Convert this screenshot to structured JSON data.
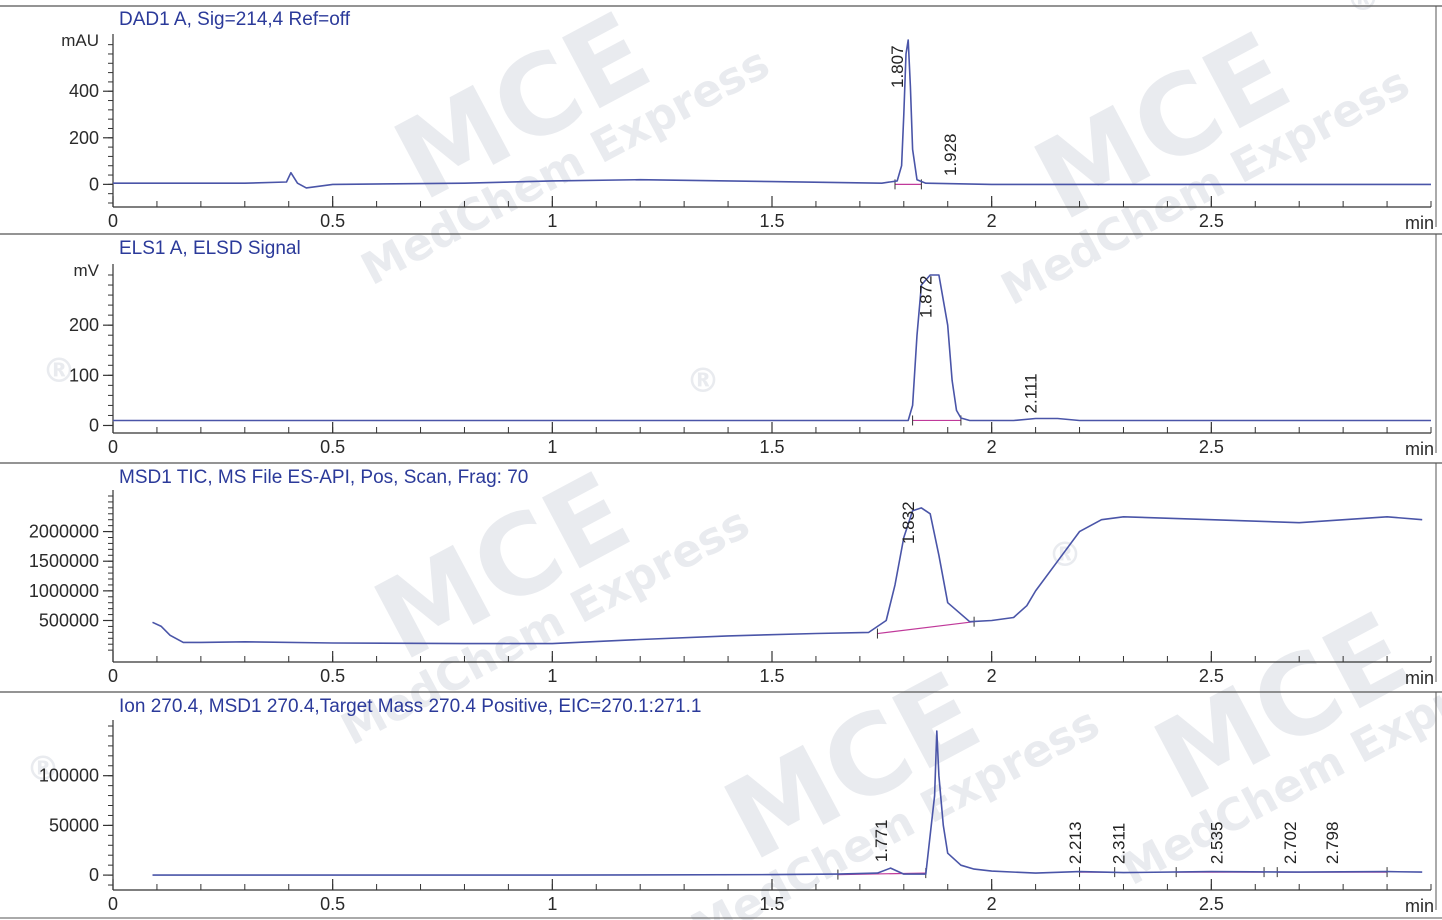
{
  "colors": {
    "trace": "#4a55a8",
    "baseline": "#c0399a",
    "axis": "#333333",
    "title": "#2b3a9a",
    "watermark": "#eceef2"
  },
  "watermark": {
    "brand": "MCE",
    "company": "MedChem Express",
    "registered": "®"
  },
  "chart_data": [
    {
      "type": "line",
      "title": "DAD1 A, Sig=214,4 Ref=off",
      "ylabel": "mAU",
      "xlabel": "min",
      "xlim": [
        0,
        3.0
      ],
      "ylim": [
        -50,
        620
      ],
      "yticks": [
        0,
        200,
        400
      ],
      "xticks": [
        0,
        0.5,
        1,
        1.5,
        2,
        2.5
      ],
      "peaks": [
        {
          "rt": "1.807",
          "x": 1.807,
          "y": 620
        },
        {
          "rt": "1.928",
          "x": 1.928,
          "y": 10
        }
      ],
      "series": [
        {
          "x": [
            0,
            0.3,
            0.395,
            0.405,
            0.42,
            0.44,
            0.5,
            0.8,
            1.0,
            1.2,
            1.5,
            1.75,
            1.785,
            1.795,
            1.8,
            1.805,
            1.81,
            1.815,
            1.82,
            1.83,
            1.85,
            2.0,
            2.5,
            3.0
          ],
          "y": [
            5,
            5,
            10,
            50,
            5,
            -15,
            0,
            5,
            15,
            20,
            12,
            5,
            15,
            80,
            300,
            560,
            620,
            420,
            150,
            20,
            5,
            0,
            0,
            0
          ]
        }
      ],
      "baselines": [
        [
          1.78,
          1.84,
          0,
          0
        ]
      ]
    },
    {
      "type": "line",
      "title": "ELS1 A, ELSD Signal",
      "ylabel": "mV",
      "xlabel": "min",
      "xlim": [
        0,
        3.0
      ],
      "ylim": [
        -15,
        310
      ],
      "yticks": [
        0,
        100,
        200
      ],
      "xticks": [
        0,
        0.5,
        1,
        1.5,
        2,
        2.5
      ],
      "peaks": [
        {
          "rt": "1.872",
          "x": 1.872,
          "y": 300
        },
        {
          "rt": "2.111",
          "x": 2.111,
          "y": 12
        }
      ],
      "series": [
        {
          "x": [
            0,
            1.5,
            1.81,
            1.82,
            1.83,
            1.84,
            1.86,
            1.88,
            1.9,
            1.91,
            1.92,
            1.93,
            1.95,
            2.05,
            2.1,
            2.15,
            2.2,
            3.0
          ],
          "y": [
            10,
            10,
            10,
            40,
            180,
            280,
            300,
            300,
            200,
            90,
            30,
            15,
            10,
            10,
            14,
            14,
            10,
            10
          ]
        }
      ],
      "baselines": [
        [
          1.82,
          1.93,
          10,
          10
        ]
      ]
    },
    {
      "type": "line",
      "title": "MSD1 TIC, MS File     ES-API, Pos, Scan, Frag: 70",
      "ylabel": "",
      "xlabel": "min",
      "xlim": [
        0,
        3.0
      ],
      "ylim": [
        -200000,
        2600000
      ],
      "yticks": [
        500000,
        1000000,
        1500000,
        2000000
      ],
      "xticks": [
        0,
        0.5,
        1,
        1.5,
        2,
        2.5
      ],
      "peaks": [
        {
          "rt": "1.832",
          "x": 1.832,
          "y": 2400000
        }
      ],
      "series": [
        {
          "x": [
            0.09,
            0.11,
            0.13,
            0.16,
            0.2,
            0.3,
            0.5,
            0.8,
            1.0,
            1.2,
            1.4,
            1.6,
            1.72,
            1.76,
            1.78,
            1.8,
            1.82,
            1.84,
            1.86,
            1.88,
            1.9,
            1.95,
            2.0,
            2.05,
            2.08,
            2.1,
            2.15,
            2.2,
            2.25,
            2.3,
            2.5,
            2.7,
            2.9,
            2.98
          ],
          "y": [
            470000,
            400000,
            250000,
            130000,
            130000,
            140000,
            120000,
            110000,
            110000,
            180000,
            240000,
            280000,
            300000,
            500000,
            1100000,
            1900000,
            2350000,
            2400000,
            2300000,
            1600000,
            800000,
            480000,
            500000,
            550000,
            750000,
            1000000,
            1500000,
            2000000,
            2200000,
            2250000,
            2200000,
            2150000,
            2250000,
            2200000
          ]
        }
      ],
      "baselines": [
        [
          1.74,
          1.96,
          280000,
          480000
        ]
      ]
    },
    {
      "type": "line",
      "title": "Ion 270.4, MSD1 270.4,Target Mass 270.4 Positive, EIC=270.1:271.1",
      "ylabel": "",
      "xlabel": "min",
      "xlim": [
        0,
        3.0
      ],
      "ylim": [
        -15000,
        150000
      ],
      "yticks": [
        0,
        50000,
        100000
      ],
      "xticks": [
        0,
        0.5,
        1,
        1.5,
        2,
        2.5
      ],
      "peaks": [
        {
          "rt": "1.771",
          "x": 1.771,
          "y": 7000
        },
        {
          "rt": "2.213",
          "x": 2.213,
          "y": 5000
        },
        {
          "rt": "2.311",
          "x": 2.311,
          "y": 5000
        },
        {
          "rt": "2.535",
          "x": 2.535,
          "y": 5000
        },
        {
          "rt": "2.702",
          "x": 2.702,
          "y": 5000
        },
        {
          "rt": "2.798",
          "x": 2.798,
          "y": 5000
        }
      ],
      "series": [
        {
          "x": [
            0.09,
            0.5,
            1.0,
            1.5,
            1.65,
            1.74,
            1.77,
            1.8,
            1.85,
            1.87,
            1.875,
            1.88,
            1.89,
            1.9,
            1.93,
            1.96,
            2.0,
            2.1,
            2.2,
            2.3,
            2.5,
            2.7,
            2.9,
            2.98
          ],
          "y": [
            0,
            0,
            0,
            500,
            1000,
            2000,
            7000,
            1000,
            1000,
            80000,
            145000,
            100000,
            50000,
            22000,
            10000,
            6000,
            4000,
            2000,
            3500,
            2500,
            3500,
            3000,
            3500,
            3000
          ]
        }
      ],
      "baselines": [
        [
          1.65,
          1.85,
          500,
          2000
        ],
        [
          2.2,
          2.28,
          3000,
          3000
        ],
        [
          2.42,
          2.62,
          3000,
          3000
        ],
        [
          2.65,
          2.9,
          3000,
          3000
        ]
      ]
    }
  ]
}
